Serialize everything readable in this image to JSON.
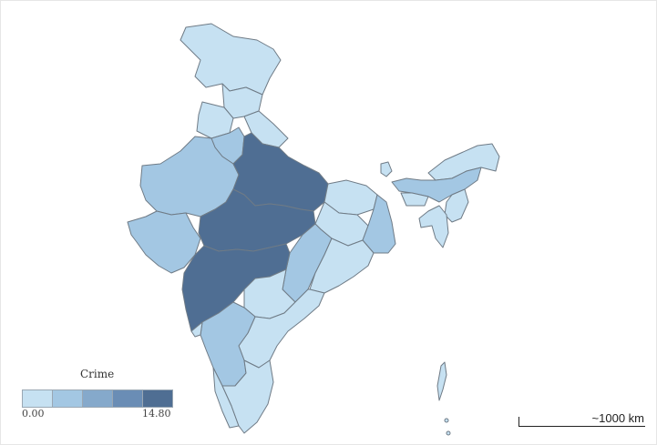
{
  "legend": {
    "title": "Crime",
    "min_label": "0.00",
    "max_label": "14.80",
    "bins": [
      "#c6e1f2",
      "#a3c7e3",
      "#85a9cb",
      "#6a8db5",
      "#4f6e93"
    ]
  },
  "scale_bar": {
    "label": "~1000 km"
  },
  "colors": {
    "stroke": "#6f7b86",
    "background": "#ffffff"
  }
}
